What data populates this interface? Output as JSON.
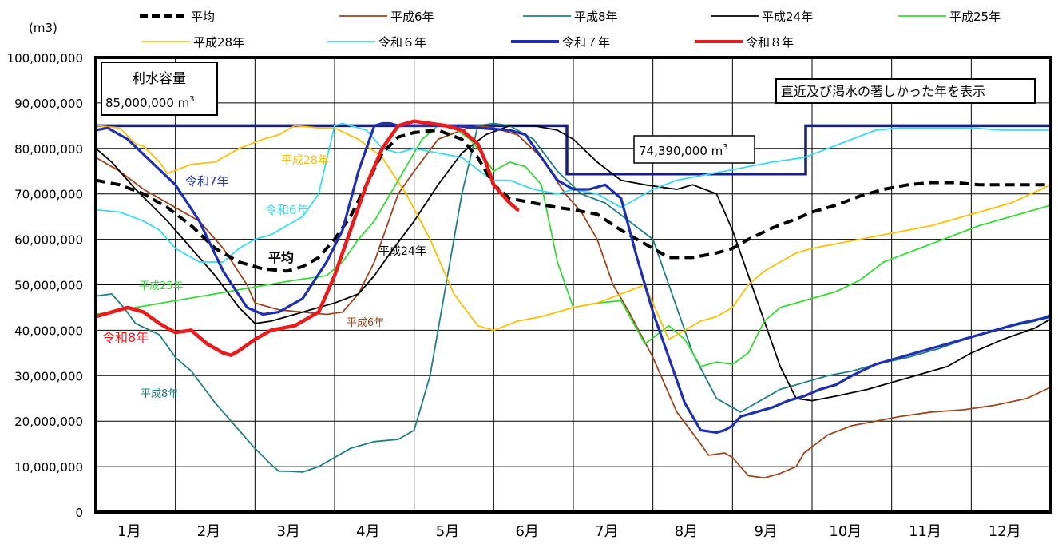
{
  "colors": {
    "average": "#000000",
    "h6": "#A0451E",
    "h8": "#1E8080",
    "h24": "#000000",
    "h25": "#33DD33",
    "h28": "#FFC000",
    "r6": "#33DDEE",
    "r7": "#1F2FB5",
    "r8": "#EE1A1A",
    "capacity": "#1A1F7A"
  },
  "chart_data": {
    "type": "line",
    "unit_label": "(m3)",
    "ylim": [
      0,
      100000000
    ],
    "y_ticks": [
      "0",
      "10,000,000",
      "20,000,000",
      "30,000,000",
      "40,000,000",
      "50,000,000",
      "60,000,000",
      "70,000,000",
      "80,000,000",
      "90,000,000",
      "100,000,000"
    ],
    "xlim": [
      0,
      12
    ],
    "x_ticks": [
      "1月",
      "2月",
      "3月",
      "4月",
      "5月",
      "6月",
      "7月",
      "8月",
      "9月",
      "10月",
      "11月",
      "12月"
    ],
    "grid": true,
    "legend_position": "top",
    "capacity_box": {
      "title": "利水容量",
      "value": "85,000,000 m",
      "sup": "3"
    },
    "limited_box": {
      "value": "74,390,000 m",
      "sup": "3"
    },
    "note": "直近及び渇水の著しかった年を表示",
    "capacity_line": {
      "x": [
        0,
        5.92,
        5.92,
        8.92,
        8.92,
        12
      ],
      "y": [
        85000000,
        85000000,
        74390000,
        74390000,
        85000000,
        85000000
      ]
    },
    "series": [
      {
        "name": "平成6年",
        "key": "h6",
        "width": 1.8,
        "label": "平成6年",
        "x": [
          0,
          0.3,
          0.6,
          1,
          1.3,
          1.6,
          1.9,
          2,
          2.3,
          2.6,
          2.9,
          3.1,
          3.3,
          3.5,
          3.6,
          3.8,
          4,
          4.3,
          4.6,
          4.8,
          5,
          5.3,
          5.6,
          5.9,
          6.1,
          6.3,
          6.5,
          6.7,
          7,
          7.3,
          7.6,
          7.7,
          7.9,
          8,
          8.2,
          8.4,
          8.6,
          8.8,
          8.9,
          9.2,
          9.5,
          9.8,
          10.1,
          10.5,
          10.9,
          11.3,
          11.7,
          12
        ],
        "y": [
          78000000,
          75000000,
          71000000,
          67000000,
          64000000,
          58000000,
          50000000,
          46000000,
          44500000,
          44000000,
          43500000,
          44000000,
          48000000,
          55000000,
          60000000,
          70000000,
          75000000,
          82000000,
          84000000,
          85000000,
          84500000,
          83000000,
          78000000,
          70000000,
          66000000,
          60000000,
          50000000,
          44000000,
          34000000,
          22000000,
          15000000,
          12500000,
          13000000,
          12000000,
          8000000,
          7500000,
          8500000,
          10000000,
          13000000,
          17000000,
          19000000,
          20000000,
          21000000,
          22000000,
          22500000,
          23500000,
          25000000,
          27500000
        ]
      },
      {
        "name": "平成8年",
        "key": "h8",
        "width": 1.8,
        "label": "平成8年",
        "x": [
          0,
          0.2,
          0.35,
          0.5,
          0.8,
          1,
          1.2,
          1.5,
          1.8,
          2,
          2.2,
          2.3,
          2.4,
          2.6,
          2.8,
          3,
          3.2,
          3.5,
          3.8,
          4,
          4.2,
          4.4,
          4.6,
          4.8,
          5,
          5.2,
          5.5,
          5.8,
          6.1,
          6.4,
          6.7,
          7,
          7.2,
          7.5,
          7.8,
          8,
          8.1,
          8.2,
          8.3,
          8.4,
          8.6,
          8.8,
          9,
          9.2,
          9.5,
          9.8,
          10.2,
          10.6,
          11,
          11.4,
          11.8,
          12
        ],
        "y": [
          47500000,
          48000000,
          45000000,
          41500000,
          39000000,
          34000000,
          31000000,
          24000000,
          18000000,
          14000000,
          10500000,
          9000000,
          9000000,
          8800000,
          10000000,
          12000000,
          14000000,
          15500000,
          16000000,
          18000000,
          30000000,
          50000000,
          70000000,
          85000000,
          85500000,
          85000000,
          82000000,
          75000000,
          70000000,
          68000000,
          64000000,
          60000000,
          50000000,
          35000000,
          25000000,
          23000000,
          22000000,
          23000000,
          24000000,
          25000000,
          27000000,
          28000000,
          29000000,
          30000000,
          31000000,
          32500000,
          34000000,
          36000000,
          38500000,
          40500000,
          42000000,
          43500000
        ]
      },
      {
        "name": "平成24年",
        "key": "h24",
        "width": 1.8,
        "label": "平成24年",
        "x": [
          0,
          0.2,
          0.5,
          0.9,
          1.2,
          1.5,
          1.8,
          2,
          2.2,
          2.5,
          2.8,
          3,
          3.3,
          3.5,
          3.7,
          4,
          4.3,
          4.6,
          4.9,
          5.2,
          5.5,
          5.8,
          6,
          6.3,
          6.6,
          6.9,
          7.1,
          7.3,
          7.5,
          7.8,
          8,
          8.2,
          8.4,
          8.6,
          8.8,
          9,
          9.3,
          9.7,
          10,
          10.3,
          10.7,
          11,
          11.4,
          11.8,
          12
        ],
        "y": [
          80000000,
          77000000,
          71000000,
          64000000,
          58000000,
          52000000,
          45000000,
          41500000,
          42000000,
          43500000,
          45000000,
          46000000,
          48000000,
          52000000,
          57000000,
          64000000,
          72000000,
          79000000,
          83000000,
          85000000,
          85000000,
          84000000,
          82000000,
          77000000,
          73000000,
          72000000,
          71500000,
          71000000,
          72000000,
          70000000,
          62000000,
          52000000,
          42000000,
          32000000,
          25000000,
          24500000,
          25500000,
          27000000,
          28500000,
          30000000,
          32000000,
          35000000,
          38000000,
          40500000,
          42500000
        ]
      },
      {
        "name": "平成25年",
        "key": "h25",
        "width": 1.8,
        "label": "平成25年",
        "x": [
          0,
          0.5,
          1,
          1.5,
          2,
          2.5,
          2.9,
          3.1,
          3.3,
          3.5,
          3.7,
          3.9,
          4.1,
          4.3,
          4.5,
          4.7,
          4.8,
          5,
          5.2,
          5.4,
          5.6,
          5.8,
          6,
          6.3,
          6.6,
          6.9,
          7.2,
          7.4,
          7.6,
          7.8,
          8,
          8.2,
          8.4,
          8.6,
          8.8,
          9,
          9.3,
          9.6,
          9.9,
          10.2,
          10.5,
          10.8,
          11.1,
          11.5,
          12
        ],
        "y": [
          43500000,
          45000000,
          46500000,
          48000000,
          49500000,
          51000000,
          52000000,
          55000000,
          60000000,
          64000000,
          70000000,
          76000000,
          82000000,
          85000000,
          84500000,
          82000000,
          80000000,
          75000000,
          77000000,
          76000000,
          72000000,
          55000000,
          45000000,
          46000000,
          46500000,
          37000000,
          41000000,
          38000000,
          32000000,
          33000000,
          32500000,
          35000000,
          42000000,
          45000000,
          46000000,
          47000000,
          48500000,
          51000000,
          55000000,
          57000000,
          59000000,
          61000000,
          63000000,
          65000000,
          67500000
        ]
      },
      {
        "name": "平成28年",
        "key": "h28",
        "width": 1.8,
        "label": "平成28年",
        "x": [
          0,
          0.3,
          0.5,
          0.6,
          0.8,
          0.9,
          1.2,
          1.5,
          1.8,
          2.1,
          2.3,
          2.5,
          2.8,
          3,
          3.3,
          3.6,
          3.9,
          4.2,
          4.5,
          4.8,
          5,
          5.3,
          5.6,
          5.8,
          6,
          6.3,
          6.6,
          6.9,
          7.2,
          7.4,
          7.6,
          7.8,
          8,
          8.2,
          8.4,
          8.6,
          8.8,
          9,
          9.3,
          9.6,
          9.9,
          10.2,
          10.5,
          10.8,
          11.1,
          11.5,
          12
        ],
        "y": [
          85000000,
          84500000,
          81000000,
          80500000,
          77000000,
          74500000,
          76500000,
          77000000,
          80000000,
          82000000,
          83000000,
          85000000,
          84500000,
          84500000,
          82000000,
          78000000,
          70000000,
          60000000,
          48000000,
          41000000,
          40000000,
          42000000,
          43000000,
          44000000,
          45000000,
          46000000,
          48000000,
          50000000,
          38000000,
          40000000,
          42000000,
          43000000,
          45000000,
          50000000,
          53000000,
          55000000,
          57000000,
          58000000,
          59000000,
          60000000,
          61000000,
          62000000,
          63000000,
          64500000,
          66000000,
          68000000,
          72000000
        ]
      },
      {
        "name": "令和６年",
        "key": "r6",
        "width": 1.8,
        "label": "令和6年",
        "x": [
          0,
          0.3,
          0.6,
          0.8,
          1,
          1.3,
          1.6,
          1.8,
          2,
          2.2,
          2.4,
          2.6,
          2.8,
          3,
          3.1,
          3.2,
          3.4,
          3.5,
          3.6,
          3.8,
          4,
          4.3,
          4.6,
          4.9,
          5,
          5.2,
          5.5,
          5.8,
          6,
          6.3,
          6.6,
          6.8,
          7,
          7.3,
          7.6,
          7.9,
          8.2,
          8.5,
          8.9,
          9.2,
          9.5,
          9.8,
          10.1,
          10.4,
          10.7,
          11,
          11.4,
          11.7,
          12
        ],
        "y": [
          66500000,
          66000000,
          64000000,
          62000000,
          58000000,
          55000000,
          55000000,
          58000000,
          60000000,
          61000000,
          63000000,
          65000000,
          70000000,
          85000000,
          85500000,
          85000000,
          84000000,
          82000000,
          80000000,
          79000000,
          80000000,
          79000000,
          78000000,
          74000000,
          73000000,
          73000000,
          71000000,
          70000000,
          71000000,
          70000000,
          67000000,
          69000000,
          71000000,
          73000000,
          74000000,
          75000000,
          76000000,
          77000000,
          78000000,
          80000000,
          82000000,
          84000000,
          84500000,
          84500000,
          84500000,
          84500000,
          84000000,
          84000000,
          84000000
        ]
      },
      {
        "name": "令和７年",
        "key": "r7",
        "width": 3.2,
        "label": "令和7年",
        "x": [
          0,
          0.15,
          0.4,
          0.7,
          1,
          1.3,
          1.6,
          1.9,
          2.1,
          2.3,
          2.6,
          2.9,
          3.1,
          3.3,
          3.5,
          3.6,
          3.7,
          3.8,
          3.9,
          4.2,
          4.5,
          4.8,
          5.2,
          5.4,
          5.6,
          5.8,
          6,
          6.2,
          6.4,
          6.6,
          6.8,
          7,
          7.2,
          7.4,
          7.6,
          7.8,
          7.9,
          8,
          8.1,
          8.3,
          8.5,
          8.7,
          8.9,
          9.1,
          9.3,
          9.5,
          9.8,
          10.1,
          10.4,
          10.7,
          11,
          11.3,
          11.6,
          12
        ],
        "y": [
          84000000,
          84500000,
          82000000,
          77000000,
          72000000,
          64000000,
          53000000,
          45000000,
          43500000,
          44000000,
          47000000,
          55000000,
          62000000,
          75000000,
          85000000,
          85500000,
          85500000,
          85000000,
          85000000,
          85000000,
          85000000,
          84500000,
          84000000,
          83000000,
          78000000,
          73000000,
          71000000,
          71000000,
          72000000,
          69000000,
          56000000,
          44000000,
          34000000,
          24000000,
          18000000,
          17500000,
          18000000,
          19000000,
          21000000,
          22000000,
          23000000,
          24500000,
          25500000,
          27000000,
          28000000,
          30000000,
          32500000,
          34000000,
          35500000,
          37000000,
          38500000,
          40000000,
          41500000,
          43000000
        ]
      },
      {
        "name": "令和８年",
        "key": "r8",
        "width": 4.5,
        "label": "令和8年",
        "x": [
          0,
          0.2,
          0.4,
          0.6,
          0.8,
          1,
          1.2,
          1.4,
          1.6,
          1.7,
          1.8,
          2,
          2.2,
          2.5,
          2.8,
          3,
          3.2,
          3.4,
          3.6,
          3.8,
          4,
          4.2,
          4.4,
          4.6,
          4.8,
          4.9,
          5,
          5.2,
          5.3
        ],
        "y": [
          43000000,
          44000000,
          45000000,
          44000000,
          41500000,
          39500000,
          40000000,
          37000000,
          35000000,
          34500000,
          35500000,
          38000000,
          40000000,
          41000000,
          44000000,
          52000000,
          62000000,
          72000000,
          80000000,
          85000000,
          86000000,
          85500000,
          85000000,
          84000000,
          81000000,
          77000000,
          72000000,
          68000000,
          66500000
        ]
      }
    ],
    "average": {
      "name": "平均",
      "label": "平均",
      "x": [
        0,
        0.3,
        0.6,
        0.9,
        1.2,
        1.5,
        1.8,
        2.1,
        2.4,
        2.6,
        2.8,
        3,
        3.2,
        3.4,
        3.6,
        3.8,
        4,
        4.3,
        4.6,
        4.8,
        5,
        5.2,
        5.5,
        5.8,
        6,
        6.3,
        6.6,
        6.9,
        7.2,
        7.5,
        7.8,
        8,
        8.2,
        8.5,
        8.8,
        9,
        9.3,
        9.6,
        9.9,
        10.2,
        10.5,
        10.8,
        11.1,
        11.4,
        11.7,
        12
      ],
      "y": [
        73000000,
        72000000,
        70000000,
        67000000,
        63000000,
        58000000,
        55000000,
        53500000,
        53000000,
        54000000,
        56000000,
        60000000,
        65000000,
        72000000,
        79000000,
        82500000,
        83500000,
        84000000,
        82000000,
        78000000,
        72000000,
        69000000,
        68000000,
        67000000,
        66500000,
        65500000,
        62000000,
        59000000,
        56000000,
        56000000,
        57000000,
        58000000,
        60000000,
        62500000,
        64500000,
        66000000,
        67500000,
        69500000,
        71000000,
        72000000,
        72500000,
        72500000,
        72000000,
        72000000,
        72000000,
        72000000
      ]
    }
  },
  "legend": [
    {
      "key": "average",
      "label": "平均",
      "dashed": true
    },
    {
      "key": "h6",
      "label": "平成6年"
    },
    {
      "key": "h8",
      "label": "平成8年"
    },
    {
      "key": "h24",
      "label": "平成24年"
    },
    {
      "key": "h25",
      "label": "平成25年"
    },
    {
      "key": "h28",
      "label": "平成28年"
    },
    {
      "key": "r6",
      "label": "令和６年"
    },
    {
      "key": "r7",
      "label": "令和７年"
    },
    {
      "key": "r8",
      "label": "令和８年"
    }
  ]
}
